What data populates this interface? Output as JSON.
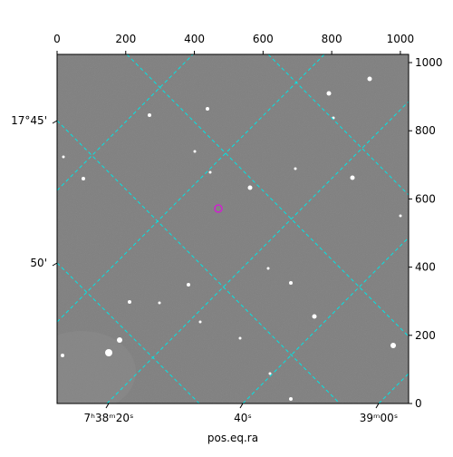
{
  "chart_data": {
    "type": "image",
    "xlabel": "pos.eq.ra",
    "xlim": [
      0,
      1024
    ],
    "ylim": [
      0,
      1024
    ],
    "xticks": [
      0,
      200,
      400,
      600,
      800,
      1000
    ],
    "yticks": [
      0,
      200,
      400,
      600,
      800,
      1000
    ],
    "ra_ticks": [
      "7ʰ38ᵐ20ˢ",
      "40ˢ",
      "39ᵐ00ˢ"
    ],
    "dec_ticks": [
      "17°45'",
      "50'"
    ],
    "grid_color": "#00e5e5"
  }
}
